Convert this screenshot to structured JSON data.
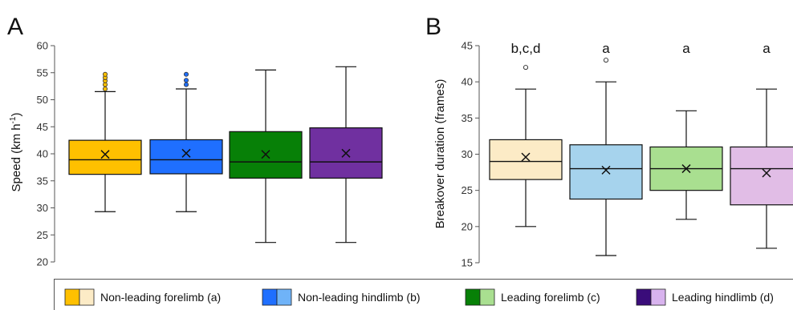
{
  "chart_data": [
    {
      "type": "box",
      "panel": "A",
      "ylabel": "Speed (km h",
      "ylabel_sup": "-1",
      "ylabel_end": ")",
      "ylim": [
        20,
        60
      ],
      "yticks": [
        20,
        25,
        30,
        35,
        40,
        45,
        50,
        55,
        60
      ],
      "grid": false,
      "series": [
        {
          "name": "Non-leading forelimb (a)",
          "color": "#FFC000",
          "lower_whisker": 29.3,
          "q1": 36.2,
          "median": 38.9,
          "q3": 42.5,
          "upper_whisker": 51.5,
          "mean": 39.9,
          "outliers": [
            52.0,
            52.8,
            53.5,
            54.1,
            54.7
          ]
        },
        {
          "name": "Non-leading hindlimb (b)",
          "color": "#1F6FFF",
          "lower_whisker": 29.3,
          "q1": 36.3,
          "median": 38.9,
          "q3": 42.6,
          "upper_whisker": 52.0,
          "mean": 40.1,
          "outliers": [
            52.8,
            53.6,
            54.7
          ]
        },
        {
          "name": "Leading forelimb (c)",
          "color": "#078007",
          "lower_whisker": 23.6,
          "q1": 35.5,
          "median": 38.5,
          "q3": 44.1,
          "upper_whisker": 55.5,
          "mean": 39.9,
          "outliers": []
        },
        {
          "name": "Leading hindlimb (d)",
          "color": "#7030A0",
          "lower_whisker": 23.6,
          "q1": 35.5,
          "median": 38.5,
          "q3": 44.8,
          "upper_whisker": 56.1,
          "mean": 40.1,
          "outliers": []
        }
      ]
    },
    {
      "type": "box",
      "panel": "B",
      "ylabel": "Breakover duration (frames)",
      "ylim": [
        15,
        45
      ],
      "yticks": [
        15,
        20,
        25,
        30,
        35,
        40,
        45
      ],
      "grid": false,
      "series": [
        {
          "name": "Non-leading forelimb (a)",
          "color": "#FCEBC6",
          "lower_whisker": 20,
          "q1": 26.5,
          "median": 29,
          "q3": 32,
          "upper_whisker": 39,
          "mean": 29.6,
          "outliers": [
            42
          ],
          "annotation": "b,c,d"
        },
        {
          "name": "Non-leading hindlimb (b)",
          "color": "#A6D3ED",
          "lower_whisker": 16,
          "q1": 23.8,
          "median": 28,
          "q3": 31.3,
          "upper_whisker": 40,
          "mean": 27.8,
          "outliers": [
            43
          ],
          "annotation": "a"
        },
        {
          "name": "Leading forelimb (c)",
          "color": "#A9DF90",
          "lower_whisker": 21,
          "q1": 25,
          "median": 28,
          "q3": 31,
          "upper_whisker": 36,
          "mean": 28,
          "outliers": [],
          "annotation": "a"
        },
        {
          "name": "Leading hindlimb (d)",
          "color": "#E1BDE6",
          "lower_whisker": 17,
          "q1": 23,
          "median": 28,
          "q3": 31,
          "upper_whisker": 39,
          "mean": 27.4,
          "outliers": [],
          "annotation": "a"
        }
      ]
    }
  ],
  "legend": {
    "items": [
      {
        "label": "Non-leading forelimb (a)",
        "dark": "#FFC000",
        "light": "#FCEBC6"
      },
      {
        "label": "Non-leading hindlimb (b)",
        "dark": "#1F6FFF",
        "light": "#6FB3F8"
      },
      {
        "label": "Leading forelimb (c)",
        "dark": "#078007",
        "light": "#A9DF90"
      },
      {
        "label": "Leading hindlimb (d)",
        "dark": "#3A0C7A",
        "light": "#D8B3EE"
      }
    ]
  }
}
